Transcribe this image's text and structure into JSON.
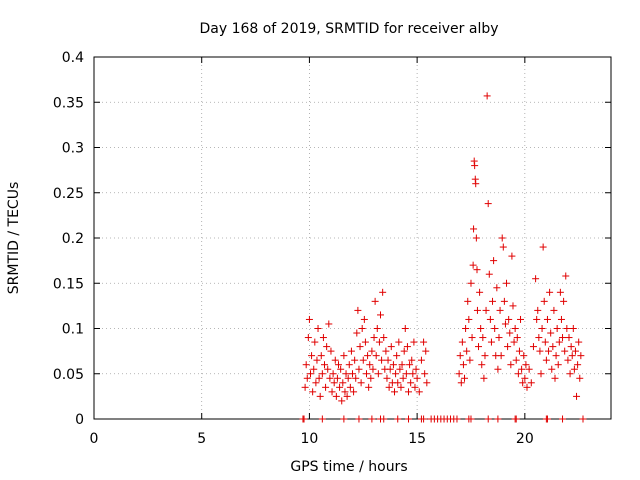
{
  "chart_data": {
    "type": "scatter",
    "title": "Day 168 of 2019, SRMTID for receiver alby",
    "xlabel": "GPS time / hours",
    "ylabel": "SRMTID / TECUs",
    "xlim": [
      0,
      24
    ],
    "ylim": [
      0,
      0.4
    ],
    "x_ticks": [
      0,
      5,
      10,
      15,
      20
    ],
    "x_tick_labels": [
      "0",
      "5",
      "10",
      "15",
      "20"
    ],
    "y_ticks": [
      0,
      0.05,
      0.1,
      0.15,
      0.2,
      0.25,
      0.3,
      0.35,
      0.4
    ],
    "y_tick_labels": [
      "0",
      "0.05",
      "0.1",
      "0.15",
      "0.2",
      "0.25",
      "0.3",
      "0.35",
      "0.4"
    ],
    "grid": true,
    "marker": "+",
    "color": "#e00000",
    "series": [
      {
        "name": "SRMTID",
        "points": [
          [
            9.7,
            0.0
          ],
          [
            9.75,
            0.0
          ],
          [
            10.6,
            0.0
          ],
          [
            11.6,
            0.0
          ],
          [
            12.3,
            0.0
          ],
          [
            12.9,
            0.0
          ],
          [
            13.3,
            0.0
          ],
          [
            13.45,
            0.0
          ],
          [
            14.1,
            0.0
          ],
          [
            14.6,
            0.0
          ],
          [
            15.2,
            0.0
          ],
          [
            15.3,
            0.0
          ],
          [
            15.65,
            0.0
          ],
          [
            15.8,
            0.0
          ],
          [
            15.95,
            0.0
          ],
          [
            16.1,
            0.0
          ],
          [
            16.25,
            0.0
          ],
          [
            16.4,
            0.0
          ],
          [
            16.55,
            0.0
          ],
          [
            16.7,
            0.0
          ],
          [
            16.85,
            0.0
          ],
          [
            17.4,
            0.0
          ],
          [
            17.5,
            0.0
          ],
          [
            18.3,
            0.0
          ],
          [
            18.75,
            0.0
          ],
          [
            19.55,
            0.0
          ],
          [
            19.6,
            0.0
          ],
          [
            21.0,
            0.0
          ],
          [
            21.05,
            0.0
          ],
          [
            21.75,
            0.0
          ],
          [
            22.7,
            0.0
          ],
          [
            9.8,
            0.035
          ],
          [
            9.85,
            0.06
          ],
          [
            9.9,
            0.045
          ],
          [
            9.95,
            0.09
          ],
          [
            10.0,
            0.11
          ],
          [
            10.05,
            0.05
          ],
          [
            10.1,
            0.07
          ],
          [
            10.15,
            0.03
          ],
          [
            10.2,
            0.055
          ],
          [
            10.25,
            0.085
          ],
          [
            10.3,
            0.04
          ],
          [
            10.35,
            0.065
          ],
          [
            10.4,
            0.1
          ],
          [
            10.45,
            0.045
          ],
          [
            10.5,
            0.025
          ],
          [
            10.55,
            0.07
          ],
          [
            10.6,
            0.05
          ],
          [
            10.65,
            0.09
          ],
          [
            10.7,
            0.06
          ],
          [
            10.75,
            0.035
          ],
          [
            10.8,
            0.08
          ],
          [
            10.85,
            0.055
          ],
          [
            10.9,
            0.105
          ],
          [
            10.95,
            0.045
          ],
          [
            11.0,
            0.075
          ],
          [
            11.05,
            0.03
          ],
          [
            11.1,
            0.05
          ],
          [
            11.15,
            0.04
          ],
          [
            11.2,
            0.065
          ],
          [
            11.25,
            0.025
          ],
          [
            11.3,
            0.045
          ],
          [
            11.35,
            0.06
          ],
          [
            11.4,
            0.035
          ],
          [
            11.45,
            0.055
          ],
          [
            11.5,
            0.02
          ],
          [
            11.55,
            0.04
          ],
          [
            11.6,
            0.07
          ],
          [
            11.65,
            0.03
          ],
          [
            11.7,
            0.05
          ],
          [
            11.75,
            0.025
          ],
          [
            11.8,
            0.045
          ],
          [
            11.85,
            0.06
          ],
          [
            11.9,
            0.035
          ],
          [
            11.95,
            0.075
          ],
          [
            12.0,
            0.05
          ],
          [
            12.05,
            0.03
          ],
          [
            12.1,
            0.065
          ],
          [
            12.15,
            0.045
          ],
          [
            12.2,
            0.095
          ],
          [
            12.25,
            0.12
          ],
          [
            12.3,
            0.055
          ],
          [
            12.35,
            0.08
          ],
          [
            12.4,
            0.04
          ],
          [
            12.45,
            0.1
          ],
          [
            12.5,
            0.065
          ],
          [
            12.55,
            0.11
          ],
          [
            12.6,
            0.085
          ],
          [
            12.65,
            0.05
          ],
          [
            12.7,
            0.07
          ],
          [
            12.75,
            0.035
          ],
          [
            12.8,
            0.06
          ],
          [
            12.85,
            0.045
          ],
          [
            12.9,
            0.075
          ],
          [
            12.95,
            0.055
          ],
          [
            13.0,
            0.09
          ],
          [
            13.05,
            0.13
          ],
          [
            13.1,
            0.07
          ],
          [
            13.15,
            0.1
          ],
          [
            13.2,
            0.05
          ],
          [
            13.25,
            0.085
          ],
          [
            13.3,
            0.115
          ],
          [
            13.35,
            0.065
          ],
          [
            13.4,
            0.14
          ],
          [
            13.45,
            0.09
          ],
          [
            13.5,
            0.055
          ],
          [
            13.55,
            0.075
          ],
          [
            13.6,
            0.045
          ],
          [
            13.65,
            0.065
          ],
          [
            13.7,
            0.035
          ],
          [
            13.75,
            0.055
          ],
          [
            13.8,
            0.08
          ],
          [
            13.85,
            0.04
          ],
          [
            13.9,
            0.06
          ],
          [
            13.95,
            0.03
          ],
          [
            14.0,
            0.05
          ],
          [
            14.05,
            0.07
          ],
          [
            14.1,
            0.04
          ],
          [
            14.15,
            0.085
          ],
          [
            14.2,
            0.055
          ],
          [
            14.25,
            0.035
          ],
          [
            14.3,
            0.06
          ],
          [
            14.35,
            0.045
          ],
          [
            14.4,
            0.075
          ],
          [
            14.45,
            0.1
          ],
          [
            14.5,
            0.05
          ],
          [
            14.55,
            0.08
          ],
          [
            14.6,
            0.03
          ],
          [
            14.65,
            0.06
          ],
          [
            14.7,
            0.04
          ],
          [
            14.75,
            0.065
          ],
          [
            14.8,
            0.05
          ],
          [
            14.85,
            0.085
          ],
          [
            14.9,
            0.035
          ],
          [
            14.95,
            0.055
          ],
          [
            15.0,
            0.045
          ],
          [
            15.1,
            0.03
          ],
          [
            15.2,
            0.065
          ],
          [
            15.3,
            0.085
          ],
          [
            15.35,
            0.05
          ],
          [
            15.4,
            0.075
          ],
          [
            15.45,
            0.04
          ],
          [
            16.95,
            0.05
          ],
          [
            17.0,
            0.07
          ],
          [
            17.05,
            0.04
          ],
          [
            17.1,
            0.085
          ],
          [
            17.15,
            0.06
          ],
          [
            17.2,
            0.045
          ],
          [
            17.25,
            0.1
          ],
          [
            17.3,
            0.075
          ],
          [
            17.35,
            0.13
          ],
          [
            17.4,
            0.11
          ],
          [
            17.45,
            0.065
          ],
          [
            17.5,
            0.15
          ],
          [
            17.55,
            0.09
          ],
          [
            17.6,
            0.17
          ],
          [
            17.62,
            0.21
          ],
          [
            17.65,
            0.285
          ],
          [
            17.67,
            0.28
          ],
          [
            17.7,
            0.265
          ],
          [
            17.72,
            0.26
          ],
          [
            17.75,
            0.2
          ],
          [
            17.78,
            0.165
          ],
          [
            17.8,
            0.12
          ],
          [
            17.85,
            0.08
          ],
          [
            17.9,
            0.14
          ],
          [
            17.95,
            0.1
          ],
          [
            18.0,
            0.06
          ],
          [
            18.05,
            0.09
          ],
          [
            18.1,
            0.045
          ],
          [
            18.15,
            0.07
          ],
          [
            18.2,
            0.12
          ],
          [
            18.25,
            0.357
          ],
          [
            18.3,
            0.238
          ],
          [
            18.35,
            0.16
          ],
          [
            18.4,
            0.11
          ],
          [
            18.45,
            0.085
          ],
          [
            18.5,
            0.13
          ],
          [
            18.55,
            0.175
          ],
          [
            18.6,
            0.1
          ],
          [
            18.65,
            0.07
          ],
          [
            18.7,
            0.145
          ],
          [
            18.75,
            0.055
          ],
          [
            18.8,
            0.09
          ],
          [
            18.85,
            0.12
          ],
          [
            18.9,
            0.07
          ],
          [
            18.95,
            0.2
          ],
          [
            19.0,
            0.19
          ],
          [
            19.05,
            0.13
          ],
          [
            19.1,
            0.105
          ],
          [
            19.15,
            0.15
          ],
          [
            19.2,
            0.08
          ],
          [
            19.25,
            0.11
          ],
          [
            19.3,
            0.095
          ],
          [
            19.35,
            0.06
          ],
          [
            19.4,
            0.18
          ],
          [
            19.45,
            0.125
          ],
          [
            19.5,
            0.085
          ],
          [
            19.55,
            0.1
          ],
          [
            19.6,
            0.065
          ],
          [
            19.65,
            0.09
          ],
          [
            19.7,
            0.05
          ],
          [
            19.75,
            0.075
          ],
          [
            19.8,
            0.11
          ],
          [
            19.85,
            0.055
          ],
          [
            19.9,
            0.04
          ],
          [
            19.95,
            0.07
          ],
          [
            20.0,
            0.045
          ],
          [
            20.05,
            0.06
          ],
          [
            20.1,
            0.035
          ],
          [
            20.2,
            0.055
          ],
          [
            20.3,
            0.04
          ],
          [
            20.4,
            0.08
          ],
          [
            20.5,
            0.155
          ],
          [
            20.55,
            0.11
          ],
          [
            20.6,
            0.12
          ],
          [
            20.65,
            0.09
          ],
          [
            20.7,
            0.075
          ],
          [
            20.75,
            0.05
          ],
          [
            20.8,
            0.1
          ],
          [
            20.85,
            0.19
          ],
          [
            20.9,
            0.13
          ],
          [
            20.95,
            0.085
          ],
          [
            21.0,
            0.065
          ],
          [
            21.05,
            0.11
          ],
          [
            21.1,
            0.075
          ],
          [
            21.15,
            0.14
          ],
          [
            21.2,
            0.095
          ],
          [
            21.25,
            0.055
          ],
          [
            21.3,
            0.08
          ],
          [
            21.35,
            0.12
          ],
          [
            21.4,
            0.045
          ],
          [
            21.45,
            0.07
          ],
          [
            21.5,
            0.1
          ],
          [
            21.55,
            0.06
          ],
          [
            21.6,
            0.085
          ],
          [
            21.65,
            0.14
          ],
          [
            21.7,
            0.11
          ],
          [
            21.75,
            0.09
          ],
          [
            21.8,
            0.13
          ],
          [
            21.85,
            0.075
          ],
          [
            21.9,
            0.158
          ],
          [
            21.95,
            0.1
          ],
          [
            22.0,
            0.065
          ],
          [
            22.05,
            0.09
          ],
          [
            22.1,
            0.05
          ],
          [
            22.15,
            0.08
          ],
          [
            22.2,
            0.07
          ],
          [
            22.25,
            0.1
          ],
          [
            22.3,
            0.055
          ],
          [
            22.35,
            0.075
          ],
          [
            22.4,
            0.025
          ],
          [
            22.45,
            0.06
          ],
          [
            22.5,
            0.085
          ],
          [
            22.55,
            0.045
          ],
          [
            22.6,
            0.07
          ]
        ]
      }
    ]
  }
}
